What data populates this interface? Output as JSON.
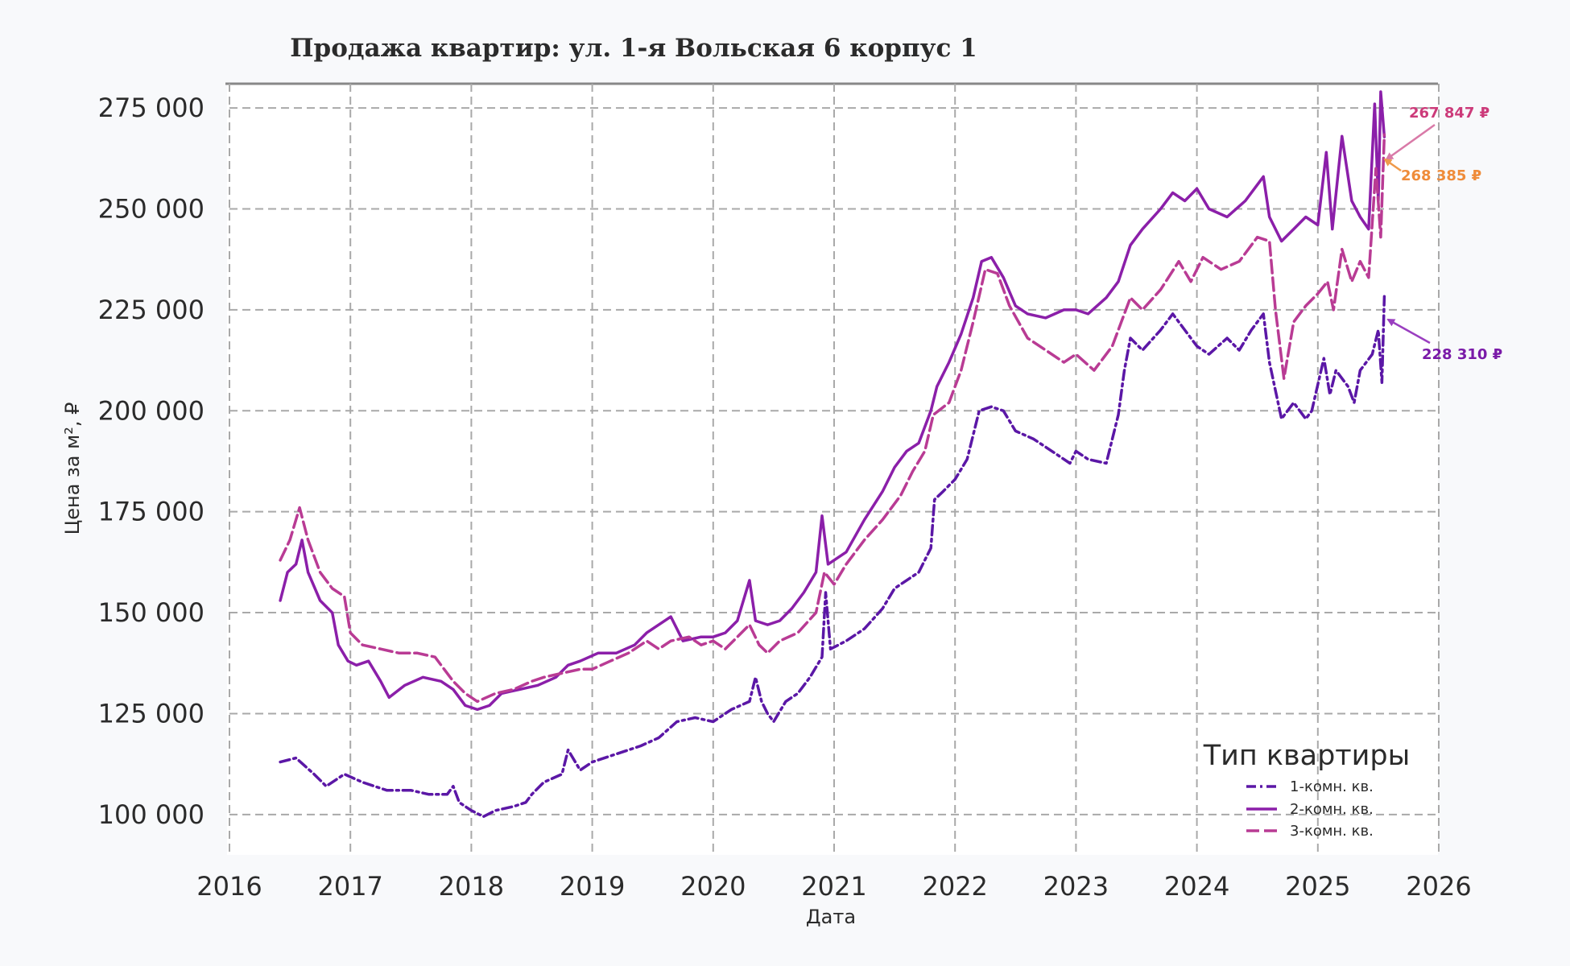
{
  "chart_data": {
    "type": "line",
    "title": "Продажа квартир: ул. 1-я Вольская 6 корпус 1",
    "xlabel": "Дата",
    "ylabel": "Цена за м², ₽",
    "xlim": [
      2016,
      2026
    ],
    "ylim": [
      90000,
      281000
    ],
    "x_ticks": [
      "2016",
      "2017",
      "2018",
      "2019",
      "2020",
      "2021",
      "2022",
      "2023",
      "2024",
      "2025",
      "2026"
    ],
    "y_ticks": [
      {
        "value": 100000,
        "label": "100 000"
      },
      {
        "value": 125000,
        "label": "125 000"
      },
      {
        "value": 150000,
        "label": "150 000"
      },
      {
        "value": 175000,
        "label": "175 000"
      },
      {
        "value": 200000,
        "label": "200 000"
      },
      {
        "value": 225000,
        "label": "225 000"
      },
      {
        "value": 250000,
        "label": "250 000"
      },
      {
        "value": 275000,
        "label": "275 000"
      }
    ],
    "grid": true,
    "legend": {
      "title": "Тип квартиры",
      "placement": "bottom-right"
    },
    "series": [
      {
        "name": "1-комн. кв.",
        "color": "#5b17a6",
        "dash": "dashdot",
        "points": [
          [
            2016.42,
            113000
          ],
          [
            2016.55,
            114000
          ],
          [
            2016.7,
            110000
          ],
          [
            2016.8,
            107000
          ],
          [
            2016.95,
            110000
          ],
          [
            2017.1,
            108000
          ],
          [
            2017.3,
            106000
          ],
          [
            2017.5,
            106000
          ],
          [
            2017.65,
            105000
          ],
          [
            2017.8,
            105000
          ],
          [
            2017.85,
            107000
          ],
          [
            2017.9,
            103000
          ],
          [
            2018.0,
            101000
          ],
          [
            2018.1,
            99500
          ],
          [
            2018.2,
            101000
          ],
          [
            2018.35,
            102000
          ],
          [
            2018.45,
            103000
          ],
          [
            2018.5,
            105000
          ],
          [
            2018.6,
            108000
          ],
          [
            2018.75,
            110000
          ],
          [
            2018.8,
            116000
          ],
          [
            2018.9,
            111000
          ],
          [
            2019.0,
            113000
          ],
          [
            2019.2,
            115000
          ],
          [
            2019.4,
            117000
          ],
          [
            2019.55,
            119000
          ],
          [
            2019.7,
            123000
          ],
          [
            2019.85,
            124000
          ],
          [
            2020.0,
            123000
          ],
          [
            2020.15,
            126000
          ],
          [
            2020.3,
            128000
          ],
          [
            2020.35,
            134000
          ],
          [
            2020.4,
            128000
          ],
          [
            2020.45,
            125000
          ],
          [
            2020.5,
            123000
          ],
          [
            2020.6,
            128000
          ],
          [
            2020.7,
            130000
          ],
          [
            2020.8,
            134000
          ],
          [
            2020.9,
            139000
          ],
          [
            2020.93,
            155000
          ],
          [
            2020.97,
            141000
          ],
          [
            2021.1,
            143000
          ],
          [
            2021.25,
            146000
          ],
          [
            2021.4,
            151000
          ],
          [
            2021.5,
            156000
          ],
          [
            2021.6,
            158000
          ],
          [
            2021.7,
            160000
          ],
          [
            2021.8,
            166000
          ],
          [
            2021.83,
            178000
          ],
          [
            2021.9,
            180000
          ],
          [
            2022.0,
            183000
          ],
          [
            2022.1,
            188000
          ],
          [
            2022.2,
            200000
          ],
          [
            2022.3,
            201000
          ],
          [
            2022.4,
            200000
          ],
          [
            2022.5,
            195000
          ],
          [
            2022.65,
            193000
          ],
          [
            2022.8,
            190000
          ],
          [
            2022.95,
            187000
          ],
          [
            2023.0,
            190000
          ],
          [
            2023.1,
            188000
          ],
          [
            2023.25,
            187000
          ],
          [
            2023.35,
            199000
          ],
          [
            2023.4,
            210000
          ],
          [
            2023.45,
            218000
          ],
          [
            2023.55,
            215000
          ],
          [
            2023.7,
            220000
          ],
          [
            2023.8,
            224000
          ],
          [
            2023.9,
            220000
          ],
          [
            2024.0,
            216000
          ],
          [
            2024.1,
            214000
          ],
          [
            2024.25,
            218000
          ],
          [
            2024.35,
            215000
          ],
          [
            2024.45,
            220000
          ],
          [
            2024.55,
            224000
          ],
          [
            2024.6,
            212000
          ],
          [
            2024.65,
            205000
          ],
          [
            2024.7,
            198000
          ],
          [
            2024.8,
            202000
          ],
          [
            2024.9,
            198000
          ],
          [
            2024.95,
            200000
          ],
          [
            2025.05,
            213000
          ],
          [
            2025.1,
            204000
          ],
          [
            2025.15,
            210000
          ],
          [
            2025.25,
            206000
          ],
          [
            2025.3,
            202000
          ],
          [
            2025.35,
            210000
          ],
          [
            2025.45,
            214000
          ],
          [
            2025.5,
            220000
          ],
          [
            2025.53,
            207000
          ],
          [
            2025.55,
            228310
          ]
        ]
      },
      {
        "name": "2-комн. кв.",
        "color": "#8b1fa9",
        "dash": "solid",
        "points": [
          [
            2016.42,
            153000
          ],
          [
            2016.48,
            160000
          ],
          [
            2016.55,
            162000
          ],
          [
            2016.6,
            168000
          ],
          [
            2016.65,
            160000
          ],
          [
            2016.75,
            153000
          ],
          [
            2016.85,
            150000
          ],
          [
            2016.9,
            142000
          ],
          [
            2016.98,
            138000
          ],
          [
            2017.05,
            137000
          ],
          [
            2017.15,
            138000
          ],
          [
            2017.25,
            133000
          ],
          [
            2017.32,
            129000
          ],
          [
            2017.45,
            132000
          ],
          [
            2017.6,
            134000
          ],
          [
            2017.75,
            133000
          ],
          [
            2017.85,
            131000
          ],
          [
            2017.95,
            127000
          ],
          [
            2018.05,
            126000
          ],
          [
            2018.15,
            127000
          ],
          [
            2018.25,
            130000
          ],
          [
            2018.4,
            131000
          ],
          [
            2018.55,
            132000
          ],
          [
            2018.7,
            134000
          ],
          [
            2018.8,
            137000
          ],
          [
            2018.9,
            138000
          ],
          [
            2019.05,
            140000
          ],
          [
            2019.2,
            140000
          ],
          [
            2019.35,
            142000
          ],
          [
            2019.45,
            145000
          ],
          [
            2019.55,
            147000
          ],
          [
            2019.65,
            149000
          ],
          [
            2019.75,
            143000
          ],
          [
            2019.9,
            144000
          ],
          [
            2020.0,
            144000
          ],
          [
            2020.1,
            145000
          ],
          [
            2020.2,
            148000
          ],
          [
            2020.3,
            158000
          ],
          [
            2020.35,
            148000
          ],
          [
            2020.45,
            147000
          ],
          [
            2020.55,
            148000
          ],
          [
            2020.65,
            151000
          ],
          [
            2020.75,
            155000
          ],
          [
            2020.85,
            160000
          ],
          [
            2020.9,
            174000
          ],
          [
            2020.95,
            162000
          ],
          [
            2021.1,
            165000
          ],
          [
            2021.25,
            173000
          ],
          [
            2021.4,
            180000
          ],
          [
            2021.5,
            186000
          ],
          [
            2021.6,
            190000
          ],
          [
            2021.7,
            192000
          ],
          [
            2021.8,
            200000
          ],
          [
            2021.85,
            206000
          ],
          [
            2021.95,
            212000
          ],
          [
            2022.05,
            219000
          ],
          [
            2022.15,
            228000
          ],
          [
            2022.22,
            237000
          ],
          [
            2022.3,
            238000
          ],
          [
            2022.4,
            233000
          ],
          [
            2022.5,
            226000
          ],
          [
            2022.6,
            224000
          ],
          [
            2022.75,
            223000
          ],
          [
            2022.9,
            225000
          ],
          [
            2023.0,
            225000
          ],
          [
            2023.1,
            224000
          ],
          [
            2023.25,
            228000
          ],
          [
            2023.35,
            232000
          ],
          [
            2023.45,
            241000
          ],
          [
            2023.55,
            245000
          ],
          [
            2023.7,
            250000
          ],
          [
            2023.8,
            254000
          ],
          [
            2023.9,
            252000
          ],
          [
            2024.0,
            255000
          ],
          [
            2024.1,
            250000
          ],
          [
            2024.25,
            248000
          ],
          [
            2024.4,
            252000
          ],
          [
            2024.5,
            256000
          ],
          [
            2024.55,
            258000
          ],
          [
            2024.6,
            248000
          ],
          [
            2024.7,
            242000
          ],
          [
            2024.8,
            245000
          ],
          [
            2024.9,
            248000
          ],
          [
            2025.0,
            246000
          ],
          [
            2025.07,
            264000
          ],
          [
            2025.12,
            245000
          ],
          [
            2025.2,
            268000
          ],
          [
            2025.28,
            252000
          ],
          [
            2025.35,
            248000
          ],
          [
            2025.42,
            245000
          ],
          [
            2025.47,
            276000
          ],
          [
            2025.5,
            252000
          ],
          [
            2025.52,
            279000
          ],
          [
            2025.55,
            267847
          ]
        ]
      },
      {
        "name": "3-комн. кв.",
        "color": "#b93b94",
        "dash": "longdash",
        "points": [
          [
            2016.42,
            163000
          ],
          [
            2016.5,
            168000
          ],
          [
            2016.58,
            176000
          ],
          [
            2016.65,
            168000
          ],
          [
            2016.75,
            160000
          ],
          [
            2016.85,
            156000
          ],
          [
            2016.95,
            154000
          ],
          [
            2017.0,
            145000
          ],
          [
            2017.1,
            142000
          ],
          [
            2017.25,
            141000
          ],
          [
            2017.4,
            140000
          ],
          [
            2017.55,
            140000
          ],
          [
            2017.7,
            139000
          ],
          [
            2017.85,
            133000
          ],
          [
            2017.95,
            130000
          ],
          [
            2018.05,
            128000
          ],
          [
            2018.2,
            130000
          ],
          [
            2018.35,
            131000
          ],
          [
            2018.5,
            133000
          ],
          [
            2018.6,
            134000
          ],
          [
            2018.75,
            135000
          ],
          [
            2018.9,
            136000
          ],
          [
            2019.0,
            136000
          ],
          [
            2019.15,
            138000
          ],
          [
            2019.3,
            140000
          ],
          [
            2019.45,
            143000
          ],
          [
            2019.55,
            141000
          ],
          [
            2019.65,
            143000
          ],
          [
            2019.8,
            144000
          ],
          [
            2019.9,
            142000
          ],
          [
            2020.0,
            143000
          ],
          [
            2020.1,
            141000
          ],
          [
            2020.2,
            144000
          ],
          [
            2020.3,
            147000
          ],
          [
            2020.38,
            142000
          ],
          [
            2020.45,
            140000
          ],
          [
            2020.55,
            143000
          ],
          [
            2020.7,
            145000
          ],
          [
            2020.85,
            150000
          ],
          [
            2020.92,
            160000
          ],
          [
            2021.0,
            157000
          ],
          [
            2021.1,
            162000
          ],
          [
            2021.25,
            168000
          ],
          [
            2021.4,
            173000
          ],
          [
            2021.55,
            179000
          ],
          [
            2021.65,
            185000
          ],
          [
            2021.75,
            190000
          ],
          [
            2021.82,
            199000
          ],
          [
            2021.95,
            202000
          ],
          [
            2022.05,
            210000
          ],
          [
            2022.15,
            222000
          ],
          [
            2022.25,
            235000
          ],
          [
            2022.35,
            234000
          ],
          [
            2022.45,
            226000
          ],
          [
            2022.6,
            218000
          ],
          [
            2022.75,
            215000
          ],
          [
            2022.9,
            212000
          ],
          [
            2023.0,
            214000
          ],
          [
            2023.15,
            210000
          ],
          [
            2023.3,
            216000
          ],
          [
            2023.45,
            228000
          ],
          [
            2023.55,
            225000
          ],
          [
            2023.7,
            230000
          ],
          [
            2023.85,
            237000
          ],
          [
            2023.95,
            232000
          ],
          [
            2024.05,
            238000
          ],
          [
            2024.2,
            235000
          ],
          [
            2024.35,
            237000
          ],
          [
            2024.5,
            243000
          ],
          [
            2024.6,
            242000
          ],
          [
            2024.65,
            225000
          ],
          [
            2024.72,
            208000
          ],
          [
            2024.8,
            222000
          ],
          [
            2024.9,
            226000
          ],
          [
            2025.0,
            229000
          ],
          [
            2025.08,
            232000
          ],
          [
            2025.13,
            225000
          ],
          [
            2025.2,
            240000
          ],
          [
            2025.28,
            232000
          ],
          [
            2025.35,
            237000
          ],
          [
            2025.42,
            233000
          ],
          [
            2025.48,
            260000
          ],
          [
            2025.52,
            243000
          ],
          [
            2025.55,
            268385
          ]
        ]
      }
    ],
    "annotations": [
      {
        "text": "267 847 ₽",
        "color": "#cc3b7a",
        "x": 2025.55,
        "y": 267847
      },
      {
        "text": "268 385 ₽",
        "color": "#ef8c3a",
        "x": 2025.55,
        "y": 268385
      },
      {
        "text": "228 310 ₽",
        "color": "#7a1aa8",
        "x": 2025.55,
        "y": 228310
      }
    ]
  }
}
